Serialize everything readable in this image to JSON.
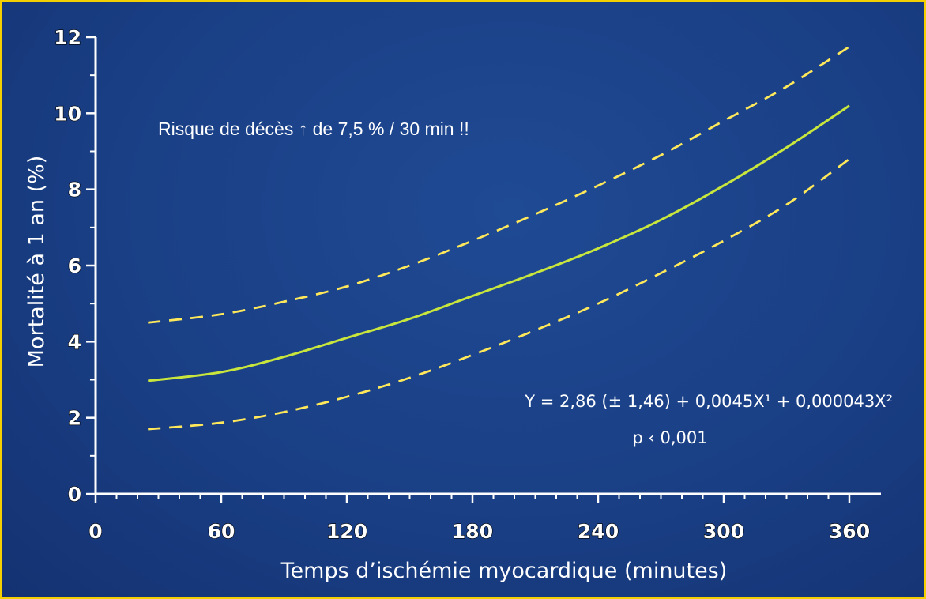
{
  "chart_data": {
    "type": "line",
    "title": "",
    "xlabel": "Temps d’ischémie myocardique (minutes)",
    "ylabel": "Mortalité à 1 an (%)",
    "xlim": [
      0,
      360
    ],
    "ylim": [
      0,
      12
    ],
    "x_ticks": [
      "0",
      "60",
      "120",
      "180",
      "240",
      "300",
      "360"
    ],
    "y_ticks": [
      "0",
      "2",
      "4",
      "6",
      "8",
      "10",
      "12"
    ],
    "grid": false,
    "legend": "none",
    "series": [
      {
        "role": "estimate",
        "style": "solid",
        "color": "#c8e63c",
        "x": [
          25,
          60,
          90,
          120,
          150,
          180,
          210,
          240,
          270,
          300,
          330,
          360
        ],
        "y": [
          2.97,
          3.2,
          3.6,
          4.1,
          4.6,
          5.2,
          5.8,
          6.45,
          7.2,
          8.1,
          9.1,
          10.2
        ]
      },
      {
        "role": "upper-bound",
        "style": "dashed",
        "color": "#ffe95a",
        "x": [
          25,
          60,
          90,
          120,
          150,
          180,
          210,
          240,
          270,
          300,
          330,
          360
        ],
        "y": [
          4.5,
          4.72,
          5.05,
          5.45,
          6.0,
          6.65,
          7.35,
          8.1,
          8.9,
          9.8,
          10.7,
          11.75
        ]
      },
      {
        "role": "lower-bound",
        "style": "dashed",
        "color": "#ffe95a",
        "x": [
          25,
          60,
          90,
          120,
          150,
          180,
          210,
          240,
          270,
          300,
          330,
          360
        ],
        "y": [
          1.7,
          1.87,
          2.15,
          2.55,
          3.05,
          3.65,
          4.3,
          5.0,
          5.8,
          6.65,
          7.6,
          8.8
        ]
      }
    ],
    "annotations": {
      "risk": "Risque de décès ↑ de 7,5 % / 30 min !!",
      "equation": "Y = 2,86 (± 1,46) + 0,0045X¹ + 0,000043X²",
      "pvalue": "p ‹ 0,001"
    },
    "colors": {
      "background": "#1a3f85",
      "border": "#f4d000",
      "axis": "#ffffff",
      "estimate": "#c8e63c",
      "bounds": "#ffe95a"
    }
  }
}
